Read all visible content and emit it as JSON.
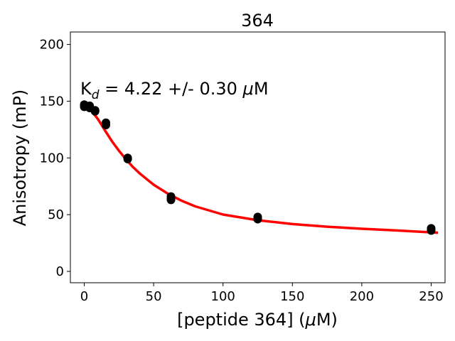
{
  "chart_data": {
    "type": "scatter",
    "title": "364",
    "annotation": {
      "prefix": "K",
      "subscript": "d",
      "value_text": " = 4.22 +/- 0.30 ",
      "mu": "μ",
      "unit_suffix": "M"
    },
    "xlabel": {
      "before": "[peptide 364] (",
      "mu": "μ",
      "after": "M)"
    },
    "ylabel": "Anisotropy (mP)",
    "xlim": [
      -10,
      260
    ],
    "ylim": [
      -10,
      211
    ],
    "xticks": [
      {
        "value": 0,
        "label": "0"
      },
      {
        "value": 50,
        "label": "50"
      },
      {
        "value": 100,
        "label": "100"
      },
      {
        "value": 150,
        "label": "150"
      },
      {
        "value": 200,
        "label": "200"
      },
      {
        "value": 250,
        "label": "250"
      }
    ],
    "yticks": [
      {
        "value": 0,
        "label": "0"
      },
      {
        "value": 50,
        "label": "50"
      },
      {
        "value": 100,
        "label": "100"
      },
      {
        "value": 150,
        "label": "150"
      },
      {
        "value": 200,
        "label": "200"
      }
    ],
    "grid": false,
    "series": [
      {
        "kind": "points",
        "color": "#000000",
        "x": [
          0,
          0,
          0,
          3.9,
          3.9,
          3.9,
          7.8,
          7.8,
          15.6,
          15.6,
          31.3,
          31.3,
          62.5,
          62.5,
          62.5,
          125,
          125,
          125,
          250,
          250,
          250
        ],
        "y": [
          145,
          147,
          146,
          145,
          146,
          144,
          142,
          141,
          129,
          131,
          99,
          100,
          63,
          66,
          64,
          46,
          48,
          47,
          36,
          38,
          37
        ]
      },
      {
        "kind": "fit-line",
        "color": "#ff0000",
        "x": [
          0,
          5,
          10,
          15,
          20,
          25,
          30,
          35,
          40,
          50,
          60,
          70,
          80,
          100,
          125,
          150,
          175,
          200,
          225,
          255
        ],
        "y": [
          147,
          141.8,
          134,
          124.1,
          114.6,
          106.3,
          98.9,
          92.1,
          86.3,
          76.4,
          68.7,
          62.4,
          57.3,
          50.1,
          45.1,
          41.7,
          39.4,
          37.6,
          36.1,
          34.1
        ]
      }
    ]
  }
}
